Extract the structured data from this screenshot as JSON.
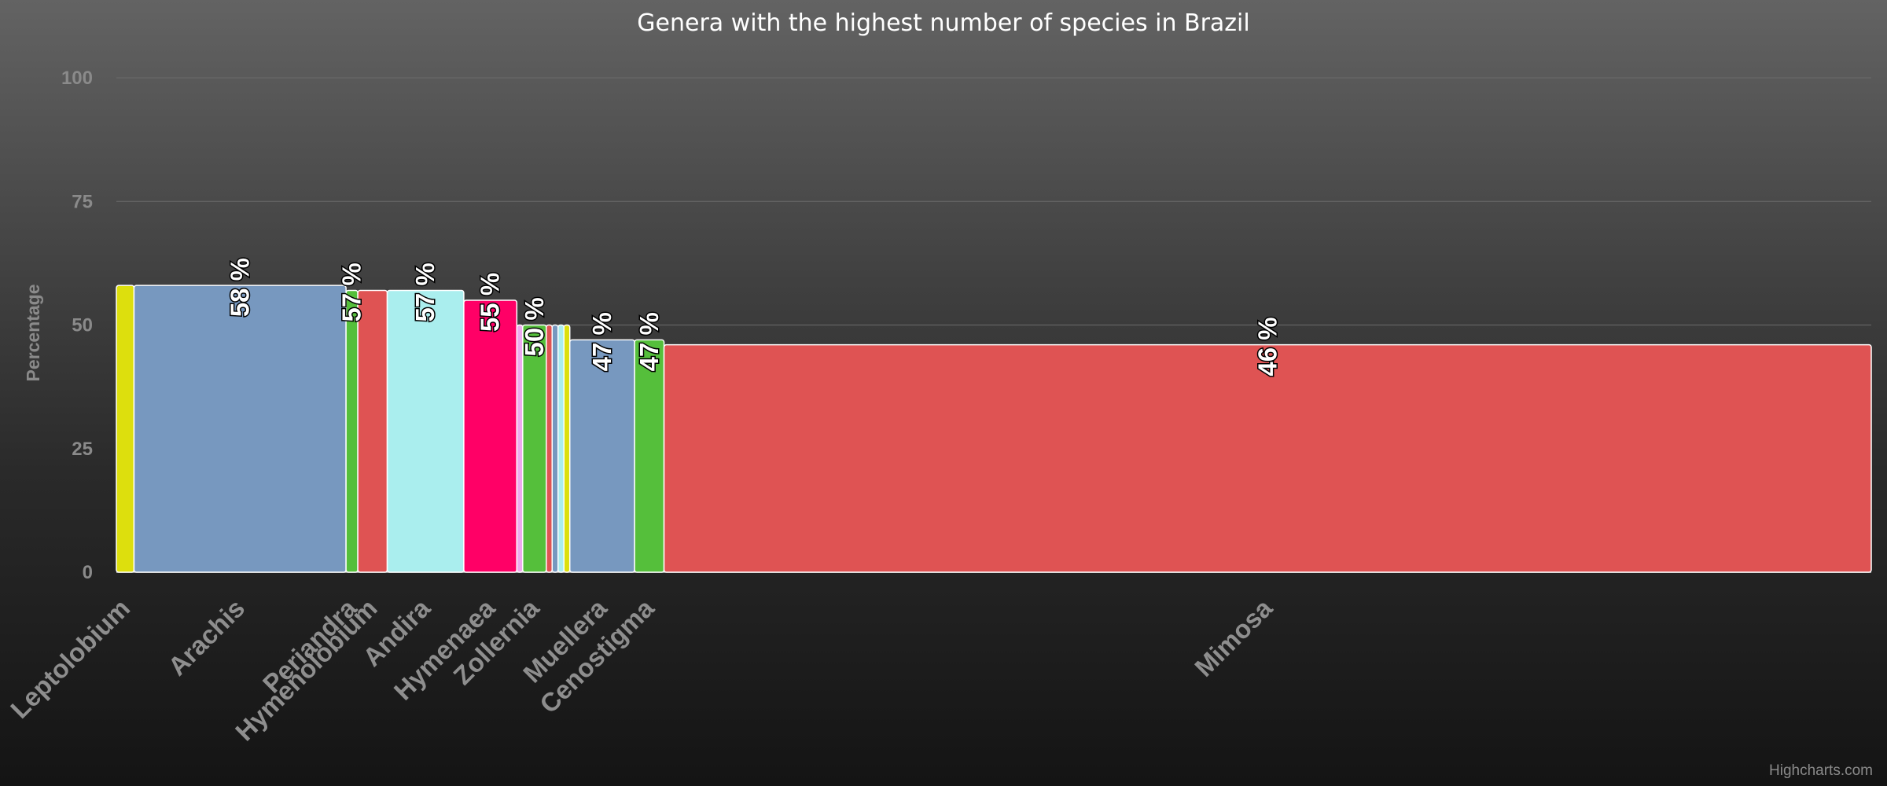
{
  "chart_data": {
    "type": "variwide",
    "title": "Genera with the highest number of species in Brazil",
    "ylabel": "Percentage",
    "ylim": [
      0,
      100
    ],
    "yticks": [
      "0",
      "25",
      "50",
      "75",
      "100"
    ],
    "grid": true,
    "legend": "none",
    "data_label_suffix": " %",
    "points": [
      {
        "name": "Leptolobium",
        "value": 58,
        "width": 3,
        "color": "#dddf0d",
        "label": "",
        "tick": "Leptolobium"
      },
      {
        "name": "Arachis",
        "value": 58,
        "width": 36,
        "color": "#7798bf",
        "label": "58 %",
        "tick": "Arachis"
      },
      {
        "name": "Periandra",
        "value": 57,
        "width": 2,
        "color": "#55bf3b",
        "label": "57 %",
        "tick": "Periandra"
      },
      {
        "name": "Hymenolobium",
        "value": 57,
        "width": 5,
        "color": "#df5353",
        "label": "",
        "tick": "Hymenolobium"
      },
      {
        "name": "Andira",
        "value": 57,
        "width": 13,
        "color": "#aaeeee",
        "label": "57 %",
        "tick": "Andira"
      },
      {
        "name": "Hymenaea",
        "value": 55,
        "width": 9,
        "color": "#ff0066",
        "label": "55 %",
        "tick": "Hymenaea"
      },
      {
        "name": "",
        "value": 50,
        "width": 1,
        "color": "#eeaaee",
        "label": "",
        "tick": ""
      },
      {
        "name": "Zollernia",
        "value": 50,
        "width": 4,
        "color": "#55bf3b",
        "label": "50 %",
        "tick": "Zollernia"
      },
      {
        "name": "",
        "value": 50,
        "width": 1,
        "color": "#df5353",
        "label": "",
        "tick": ""
      },
      {
        "name": "",
        "value": 50,
        "width": 1,
        "color": "#7798bf",
        "label": "",
        "tick": ""
      },
      {
        "name": "",
        "value": 50,
        "width": 1,
        "color": "#aaeeee",
        "label": "",
        "tick": ""
      },
      {
        "name": "",
        "value": 50,
        "width": 1,
        "color": "#dddf0d",
        "label": "",
        "tick": ""
      },
      {
        "name": "Muellera",
        "value": 47,
        "width": 11,
        "color": "#7798bf",
        "label": "47 %",
        "tick": "Muellera"
      },
      {
        "name": "Cenostigma",
        "value": 47,
        "width": 5,
        "color": "#55bf3b",
        "label": "47 %",
        "tick": "Cenostigma"
      },
      {
        "name": "Mimosa",
        "value": 46,
        "width": 205,
        "color": "#df5353",
        "label": "46 %",
        "tick": "Mimosa"
      }
    ]
  },
  "credits": "Highcharts.com"
}
